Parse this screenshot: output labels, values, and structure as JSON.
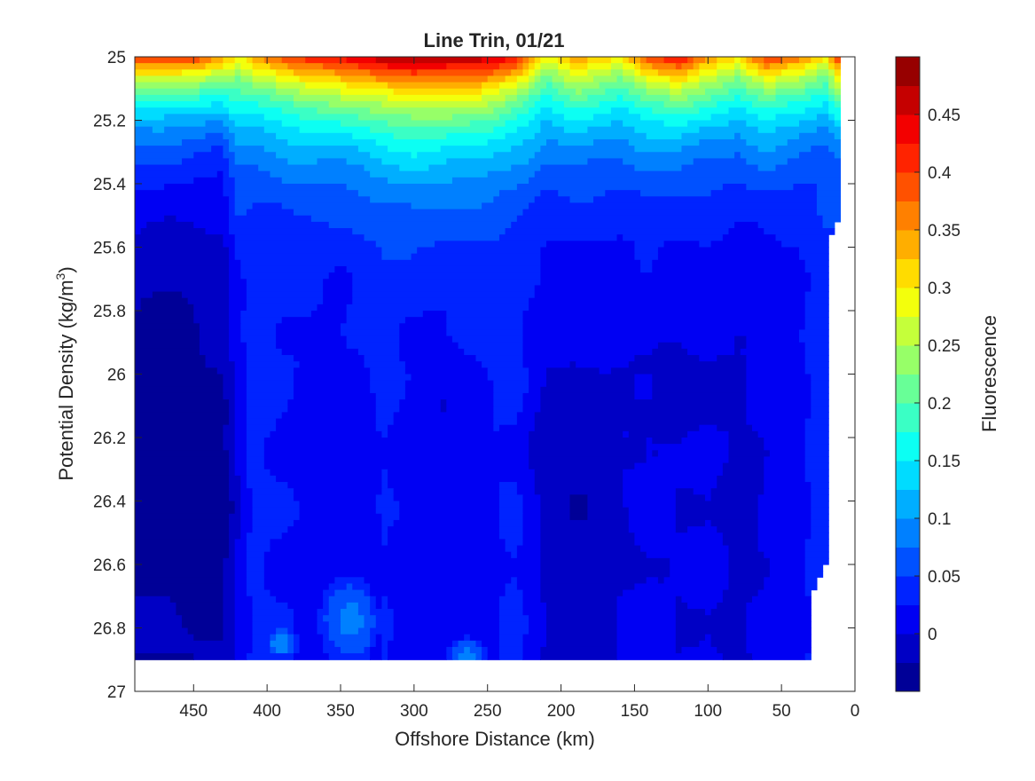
{
  "chart_data": {
    "type": "heatmap",
    "subtype": "filled-contour",
    "title": "Line Trin, 01/21",
    "xlabel": "Offshore Distance (km)",
    "ylabel_main": "Potential Density (kg/m",
    "ylabel_sup": "3",
    "ylabel_close": ")",
    "colorbar_label": "Fluorescence",
    "xlim": [
      490,
      0
    ],
    "x_direction": "reversed",
    "ylim": [
      27,
      25
    ],
    "y_direction": "reversed",
    "x_ticks": [
      450,
      400,
      350,
      300,
      250,
      200,
      150,
      100,
      50,
      0
    ],
    "y_ticks": [
      25,
      25.2,
      25.4,
      25.6,
      25.8,
      26,
      26.2,
      26.4,
      26.6,
      26.8,
      27
    ],
    "y_tick_labels": [
      "25",
      "25.2",
      "25.4",
      "25.6",
      "25.8",
      "26",
      "26.2",
      "26.4",
      "26.6",
      "26.8",
      "27"
    ],
    "colorbar": {
      "range": [
        -0.05,
        0.5
      ],
      "step": 0.025,
      "ticks": [
        0,
        0.05,
        0.1,
        0.15,
        0.2,
        0.25,
        0.3,
        0.35,
        0.4,
        0.45
      ],
      "tick_labels": [
        "0",
        "0.05",
        "0.1",
        "0.15",
        "0.2",
        "0.25",
        "0.3",
        "0.35",
        "0.4",
        "0.45"
      ],
      "colormap": "jet"
    },
    "data_extent": {
      "x_range": [
        490,
        10
      ],
      "y_top": 25,
      "y_bottom": 26.9
    },
    "grid": false,
    "field": {
      "x": [
        490,
        470,
        450,
        430,
        420,
        410,
        380,
        350,
        320,
        300,
        280,
        250,
        230,
        210,
        190,
        160,
        140,
        120,
        100,
        80,
        60,
        40,
        20,
        10
      ],
      "y": [
        25.0,
        25.05,
        25.1,
        25.15,
        25.2,
        25.25,
        25.3,
        25.35,
        25.4,
        25.45,
        25.5,
        25.55,
        25.6,
        25.65,
        25.7,
        25.75,
        25.8,
        25.85,
        25.9,
        25.95,
        26.0,
        26.05,
        26.1,
        26.15,
        26.2,
        26.25,
        26.3,
        26.35,
        26.4,
        26.45,
        26.5,
        26.55,
        26.6,
        26.65,
        26.7,
        26.75,
        26.8,
        26.85,
        26.9
      ],
      "surface": [
        0.41,
        0.41,
        0.41,
        0.36,
        0.29,
        0.35,
        0.41,
        0.44,
        0.48,
        0.49,
        0.48,
        0.47,
        0.43,
        0.28,
        0.36,
        0.3,
        0.4,
        0.44,
        0.36,
        0.31,
        0.41,
        0.37,
        0.31,
        0.43
      ],
      "trough": [
        -0.025,
        -0.025,
        -0.025,
        -0.02,
        0.005,
        0.03,
        0.02,
        0.01,
        0.025,
        0.01,
        0.005,
        0.02,
        0.03,
        -0.005,
        -0.005,
        0.0,
        0.005,
        0.0,
        0.005,
        -0.005,
        0.005,
        0.015,
        0.04,
        0.04
      ],
      "decay_a": [
        0.17,
        0.17,
        0.16,
        0.16,
        0.26,
        0.2,
        0.22,
        0.22,
        0.23,
        0.25,
        0.25,
        0.23,
        0.21,
        0.25,
        0.23,
        0.23,
        0.21,
        0.2,
        0.21,
        0.22,
        0.2,
        0.19,
        0.18,
        0.18
      ],
      "decay_b": [
        0.32,
        0.32,
        0.3,
        0.3,
        0.4,
        0.3,
        0.3,
        0.3,
        0.32,
        0.36,
        0.36,
        0.34,
        0.3,
        0.4,
        0.36,
        0.34,
        0.3,
        0.28,
        0.32,
        0.34,
        0.3,
        0.28,
        0.26,
        0.26
      ],
      "deep_patches": [
        {
          "x": 470,
          "y": 26.15,
          "rx": 30,
          "ry": 0.55,
          "v": -0.03
        },
        {
          "x": 445,
          "y": 26.4,
          "rx": 30,
          "ry": 0.45,
          "v": -0.03
        },
        {
          "x": 365,
          "y": 26.15,
          "rx": 28,
          "ry": 0.22,
          "v": -0.01
        },
        {
          "x": 285,
          "y": 26.1,
          "rx": 25,
          "ry": 0.12,
          "v": -0.01
        },
        {
          "x": 200,
          "y": 26.25,
          "rx": 45,
          "ry": 0.28,
          "v": -0.015
        },
        {
          "x": 180,
          "y": 26.5,
          "rx": 35,
          "ry": 0.2,
          "v": -0.012
        },
        {
          "x": 120,
          "y": 26.05,
          "rx": 55,
          "ry": 0.18,
          "v": -0.015
        },
        {
          "x": 75,
          "y": 26.4,
          "rx": 25,
          "ry": 0.15,
          "v": -0.01
        }
      ],
      "bright_patches": [
        {
          "x": 345,
          "y": 26.78,
          "rx": 22,
          "ry": 0.15,
          "v": 0.075
        },
        {
          "x": 265,
          "y": 26.88,
          "rx": 15,
          "ry": 0.06,
          "v": 0.07
        },
        {
          "x": 390,
          "y": 26.85,
          "rx": 12,
          "ry": 0.05,
          "v": 0.065
        }
      ],
      "mask_right_edge": [
        {
          "y": 25.0,
          "x": 10
        },
        {
          "y": 25.5,
          "x": 10
        },
        {
          "y": 25.6,
          "x": 20
        },
        {
          "y": 26.6,
          "x": 20
        },
        {
          "y": 26.7,
          "x": 30
        },
        {
          "y": 26.9,
          "x": 30
        }
      ]
    }
  }
}
